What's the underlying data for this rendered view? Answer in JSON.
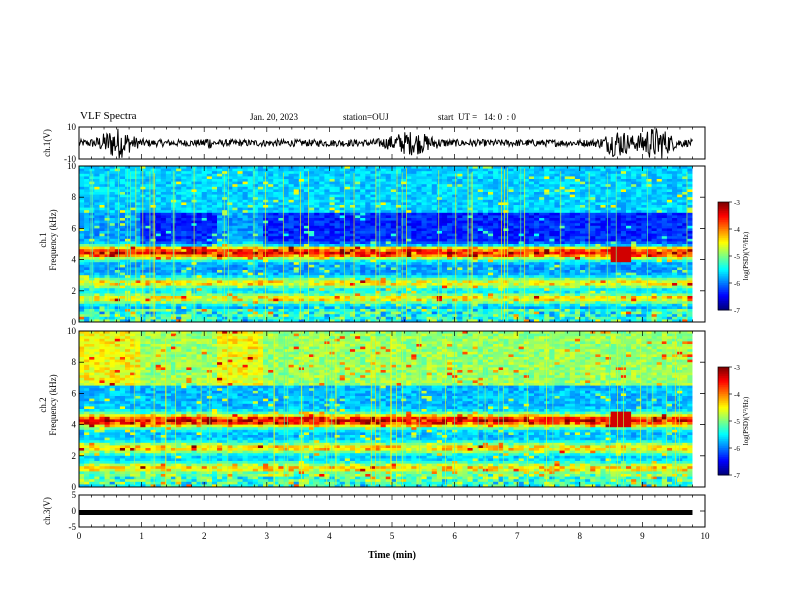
{
  "header": {
    "title": "VLF Spectra",
    "date": "Jan. 20, 2023",
    "station": "station=OUJ",
    "start_ut": "start  UT =   14: 0  : 0"
  },
  "chart_data": [
    {
      "type": "line",
      "title": "",
      "ylabel": "ch.1(V)",
      "ylim": [
        -10,
        10
      ],
      "yticks": [
        "10",
        "-10"
      ],
      "description_series": "waveform",
      "x_range_min": [
        0,
        9.8
      ]
    },
    {
      "type": "heatmap",
      "ylabel_top": "ch.1",
      "ylabel": "Frequency (kHz)",
      "ylim": [
        0,
        10
      ],
      "yticks": [
        "0",
        "2",
        "4",
        "6",
        "8",
        "10"
      ],
      "colorbar": {
        "label": "log(PSD)(V²/Hz)",
        "range": [
          -7,
          -3
        ],
        "ticks": [
          "-3",
          "-4",
          "-5",
          "-6",
          "-7"
        ]
      },
      "emission_bands_khz": [
        1.5,
        2.5,
        4.3,
        4.6
      ]
    },
    {
      "type": "heatmap",
      "ylabel_top": "ch.2",
      "ylabel": "Frequency (kHz)",
      "ylim": [
        0,
        10
      ],
      "yticks": [
        "0",
        "2",
        "4",
        "6",
        "8",
        "10"
      ],
      "colorbar": {
        "label": "log(PSD)(V²/Hz)",
        "range": [
          -7,
          -3
        ],
        "ticks": [
          "-3",
          "-4",
          "-5",
          "-6",
          "-7"
        ]
      },
      "emission_bands_khz": [
        1.2,
        2.5,
        4.1,
        4.4
      ]
    },
    {
      "type": "line",
      "ylabel": "ch.3(V)",
      "ylim": [
        -5,
        5
      ],
      "yticks": [
        "5",
        "0",
        "-5"
      ],
      "level_v": 0
    }
  ],
  "x_axis": {
    "label": "Time (min)",
    "ticks": [
      "0",
      "1",
      "2",
      "3",
      "4",
      "5",
      "6",
      "7",
      "8",
      "9",
      "10"
    ],
    "range": [
      0,
      10
    ]
  },
  "colors": {
    "background": "#ffffff",
    "axis": "#000000",
    "trace": "#000000"
  }
}
